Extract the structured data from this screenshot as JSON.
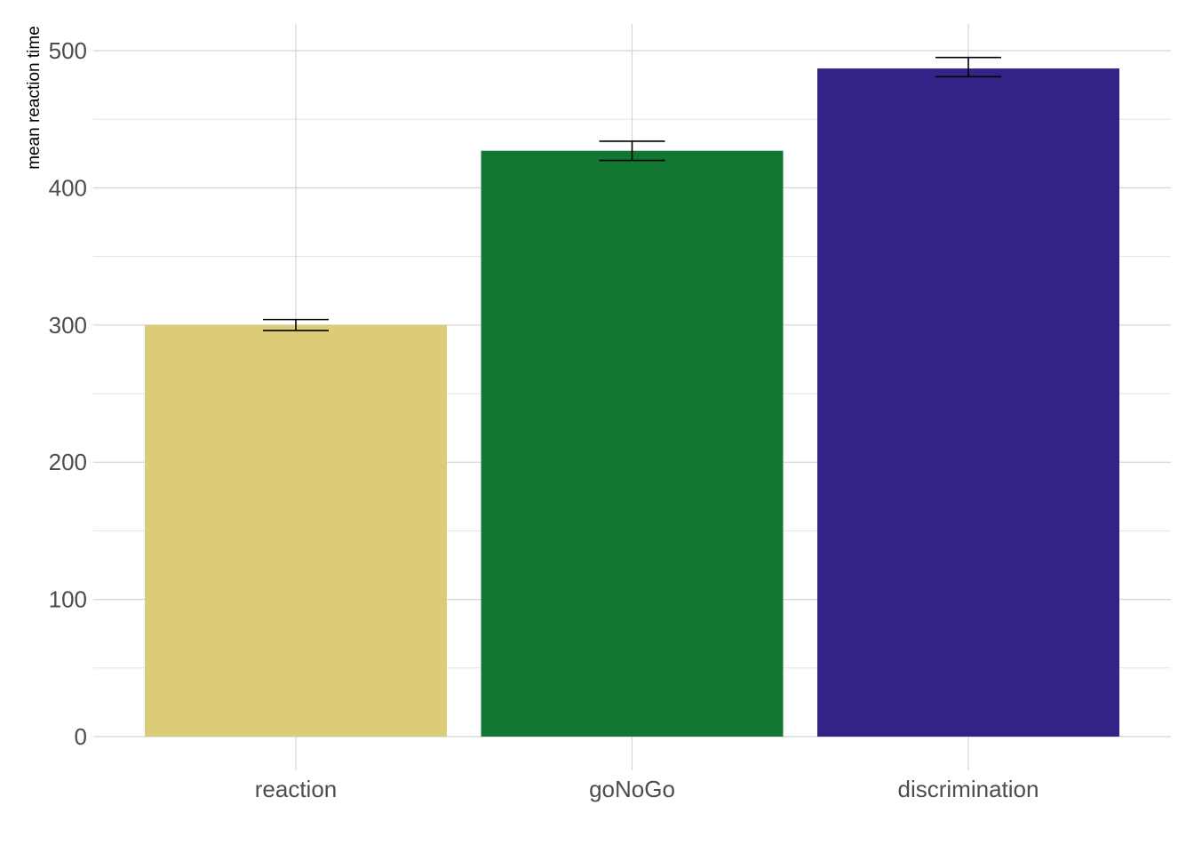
{
  "chart_data": {
    "type": "bar",
    "title": "",
    "xlabel": "",
    "ylabel": "mean reaction time",
    "categories": [
      "reaction",
      "goNoGo",
      "discrimination"
    ],
    "values": [
      300,
      427,
      487
    ],
    "error_bars": [
      {
        "low": 296,
        "high": 304
      },
      {
        "low": 420,
        "high": 434
      },
      {
        "low": 481,
        "high": 495
      }
    ],
    "colors": [
      "#DDCC77",
      "#117733",
      "#332288"
    ],
    "ylim": [
      0,
      520
    ],
    "yticks": [
      0,
      100,
      200,
      300,
      400,
      500
    ],
    "yticks_minor": [
      50,
      150,
      250,
      350,
      450
    ],
    "grid": true,
    "legend": "none"
  }
}
